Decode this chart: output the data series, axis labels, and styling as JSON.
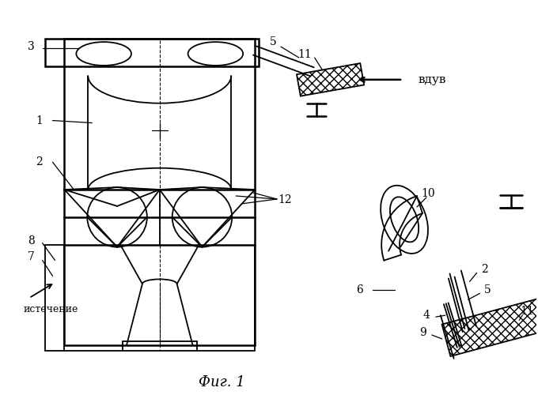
{
  "background_color": "#ffffff",
  "line_color": "#000000",
  "title": "Фиг. 1",
  "title_fontsize": 13,
  "fig_width": 6.8,
  "fig_height": 5.0,
  "dpi": 100
}
